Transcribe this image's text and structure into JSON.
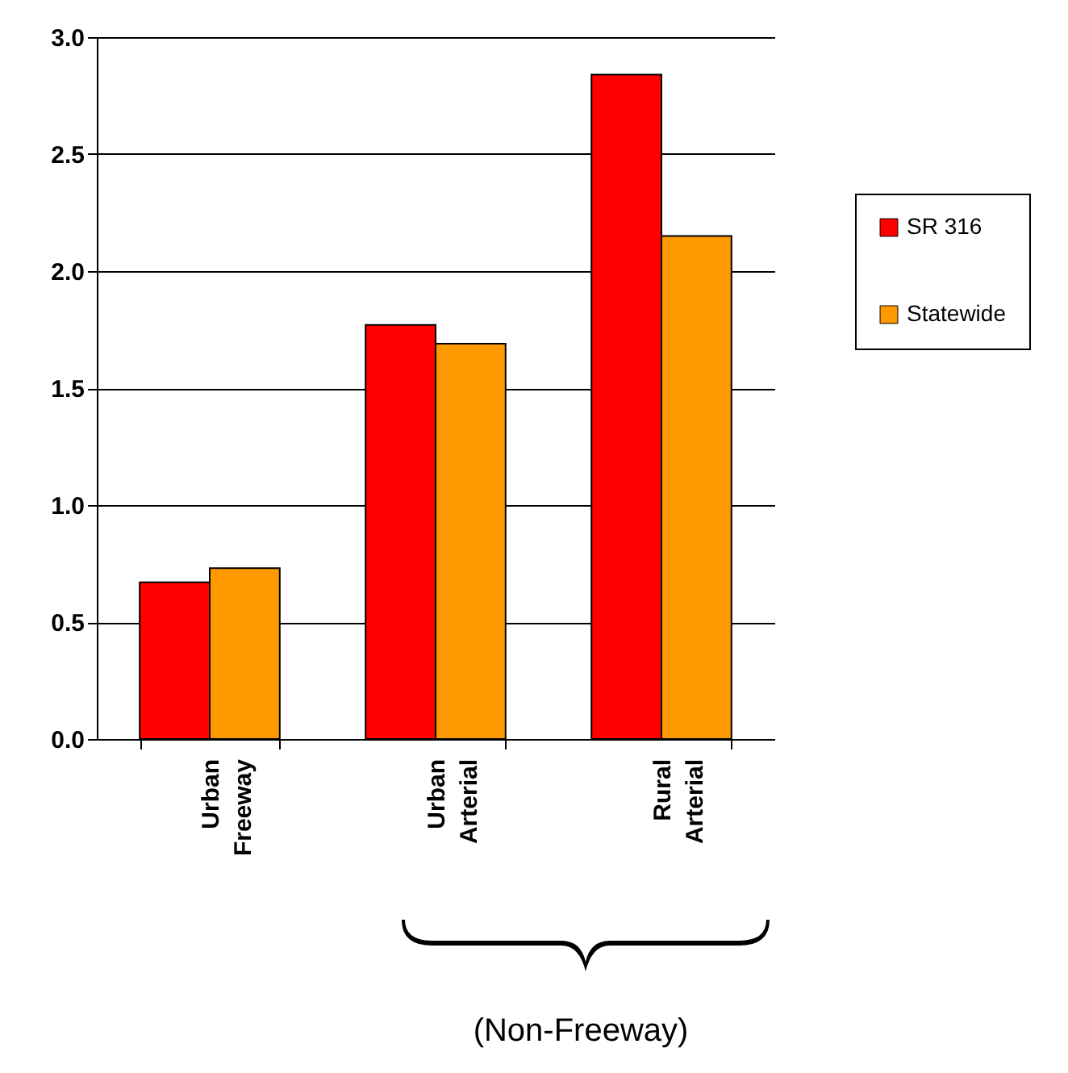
{
  "chart_data": {
    "type": "bar",
    "categories": [
      "Urban Freeway",
      "Urban Arterial",
      "Rural Arterial"
    ],
    "series": [
      {
        "name": "SR 316",
        "color": "#ff0000",
        "values": [
          0.67,
          1.77,
          2.84
        ]
      },
      {
        "name": "Statewide",
        "color": "#ff9900",
        "values": [
          0.73,
          1.69,
          2.15
        ]
      }
    ],
    "ylim": [
      0,
      3
    ],
    "yticks": [
      {
        "value": 0,
        "label": "0.0"
      },
      {
        "value": 0.5,
        "label": "0.5"
      },
      {
        "value": 1,
        "label": "1.0"
      },
      {
        "value": 1.5,
        "label": "1.5"
      },
      {
        "value": 2,
        "label": "2.0"
      },
      {
        "value": 2.5,
        "label": "2.5"
      },
      {
        "value": 3,
        "label": "3.0"
      }
    ],
    "grid": "y",
    "legend": "right",
    "annotations": [
      "(Non-Freeway)"
    ]
  }
}
